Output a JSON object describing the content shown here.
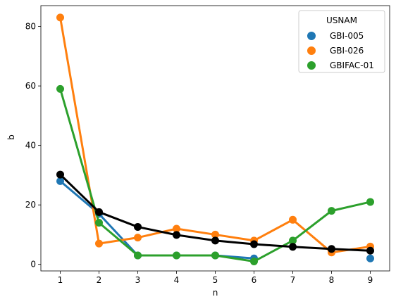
{
  "chart_data": {
    "type": "line",
    "title": "",
    "xlabel": "n",
    "ylabel": "b",
    "x": [
      1,
      2,
      3,
      4,
      5,
      6,
      7,
      8,
      9
    ],
    "x_ticks": [
      "1",
      "2",
      "3",
      "4",
      "5",
      "6",
      "7",
      "8",
      "9"
    ],
    "y_ticks": [
      "0",
      "20",
      "40",
      "60",
      "80"
    ],
    "ylim": [
      -2.2,
      87.0
    ],
    "grid": false,
    "legend": {
      "title": "USNAM",
      "placement": "top-right"
    },
    "series": [
      {
        "name": "GBI-005",
        "color": "#1f77b4",
        "x": [
          1,
          2,
          3,
          4,
          5,
          6
        ],
        "values": [
          28,
          17,
          3,
          3,
          3,
          2
        ],
        "extra_points": [
          {
            "x": 9,
            "y": 2
          }
        ]
      },
      {
        "name": "GBI-026",
        "color": "#ff7f0e",
        "x": [
          1,
          2,
          3,
          4,
          5,
          6,
          7,
          8,
          9
        ],
        "values": [
          83,
          7,
          9,
          12,
          10,
          8,
          15,
          4,
          6
        ]
      },
      {
        "name": "GBIFAC-01",
        "color": "#2ca02c",
        "x": [
          1,
          2,
          3,
          4,
          5,
          6,
          7,
          8,
          9
        ],
        "values": [
          59,
          14,
          3,
          3,
          3,
          1,
          8,
          18,
          21
        ]
      }
    ],
    "fit": {
      "color": "#000000",
      "x": [
        1,
        2,
        3,
        4,
        5,
        6,
        7,
        8,
        9
      ],
      "values": [
        30.2,
        17.6,
        12.6,
        9.9,
        8.0,
        6.8,
        5.9,
        5.2,
        4.6
      ]
    }
  }
}
